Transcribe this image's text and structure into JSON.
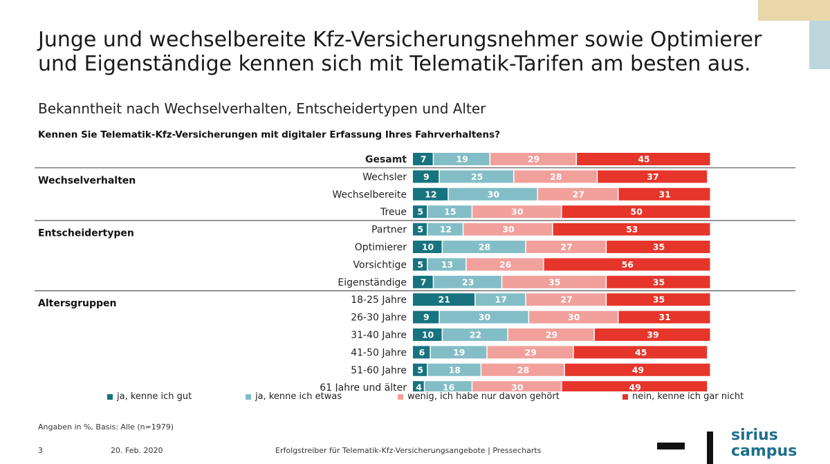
{
  "header": {
    "title": "Junge und wechselbereite Kfz-Versicherungsnehmer sowie Optimierer und Eigenständige kennen sich mit Telematik-Tarifen am besten aus.",
    "subtitle": "Bekanntheit nach Wechselverhalten, Entscheidertypen und Alter",
    "question": "Kennen Sie Telematik-Kfz-Versicherungen mit digitaler Erfassung Ihres Fahrverhaltens?"
  },
  "chart_data": {
    "type": "bar",
    "orientation": "horizontal-stacked-100",
    "title": "",
    "xlabel": "",
    "ylabel": "",
    "xlim": [
      0,
      100
    ],
    "groups": [
      {
        "name": "",
        "rows": [
          0
        ]
      },
      {
        "name": "Wechselverhalten",
        "rows": [
          1,
          2,
          3
        ]
      },
      {
        "name": "Entscheidertypen",
        "rows": [
          4,
          5,
          6,
          7
        ]
      },
      {
        "name": "Altersgruppen",
        "rows": [
          8,
          9,
          10,
          11,
          12,
          13
        ]
      }
    ],
    "categories": [
      "Gesamt",
      "Wechsler",
      "Wechselbereite",
      "Treue",
      "Partner",
      "Optimierer",
      "Vorsichtige",
      "Eigenständige",
      "18-25 Jahre",
      "26-30 Jahre",
      "31-40 Jahre",
      "41-50 Jahre",
      "51-60 Jahre",
      "61 Jahre und älter"
    ],
    "series": [
      {
        "name": "ja, kenne ich gut",
        "color": "#17737e",
        "values": [
          7,
          9,
          12,
          5,
          5,
          10,
          5,
          7,
          21,
          9,
          10,
          6,
          5,
          4
        ]
      },
      {
        "name": "ja, kenne ich etwas",
        "color": "#83bec7",
        "values": [
          19,
          25,
          30,
          15,
          12,
          28,
          13,
          23,
          17,
          30,
          22,
          19,
          18,
          16
        ]
      },
      {
        "name": "wenig, ich habe nur davon gehört",
        "color": "#f2a09b",
        "values": [
          29,
          28,
          27,
          30,
          30,
          27,
          26,
          35,
          27,
          30,
          29,
          29,
          28,
          30
        ]
      },
      {
        "name": "nein, kenne ich gar nicht",
        "color": "#e6352b",
        "values": [
          45,
          37,
          31,
          50,
          53,
          35,
          56,
          35,
          35,
          31,
          39,
          45,
          49,
          49
        ]
      }
    ],
    "legend_position": "bottom"
  },
  "footer": {
    "note": "Angaben in %, Basis: Alle (n=1979)",
    "page_number": "3",
    "date": "20. Feb. 2020",
    "text": "Erfolgstreiber für Telematik-Kfz-Versicherungsangebote | Pressecharts",
    "logo_text": "sirius\ncampus"
  }
}
